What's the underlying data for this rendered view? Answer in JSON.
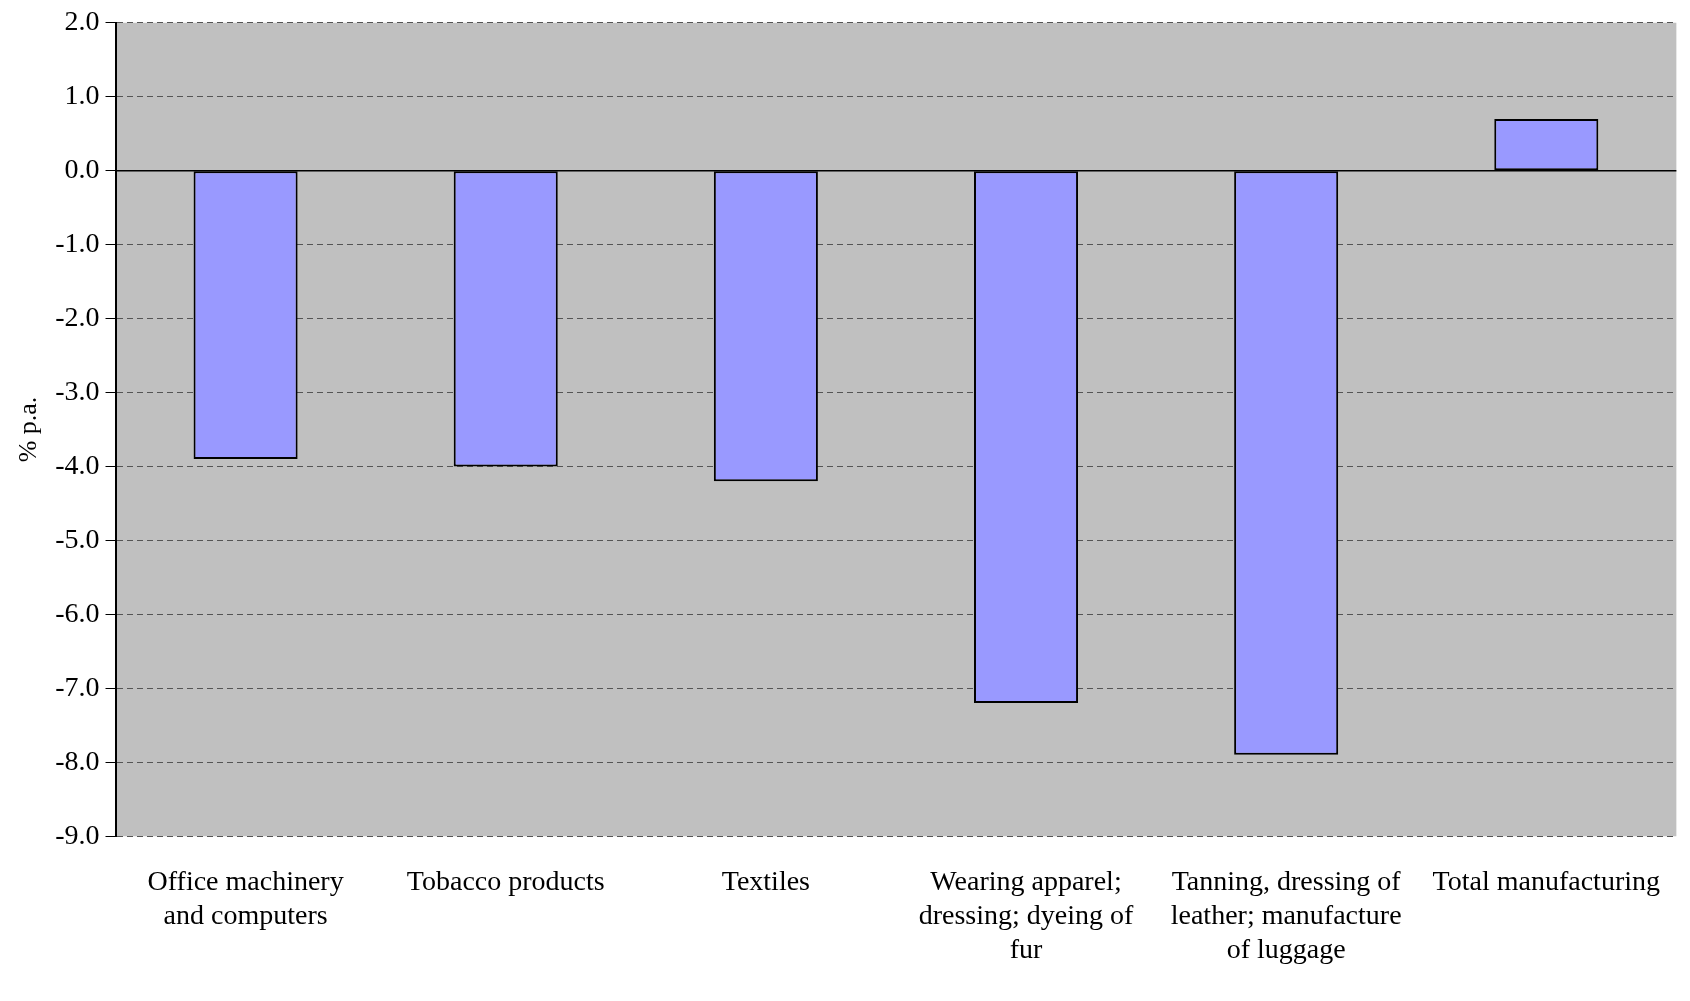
{
  "chart_data": {
    "type": "bar",
    "ylabel": "% p.a.",
    "categories": [
      "Office machinery and computers",
      "Tobacco products",
      "Textiles",
      "Wearing apparel; dressing; dyeing of fur",
      "Tanning, dressing of leather; manufacture of luggage",
      "Total manufacturing"
    ],
    "values": [
      -3.9,
      -4.0,
      -4.2,
      -7.2,
      -7.9,
      0.7
    ],
    "color": "#9999ff",
    "ylim": [
      -9,
      2
    ],
    "yticks": [
      {
        "value": 2,
        "label": "2.0"
      },
      {
        "value": 1,
        "label": "1.0"
      },
      {
        "value": 0,
        "label": "0.0"
      },
      {
        "value": -1,
        "label": "-1.0"
      },
      {
        "value": -2,
        "label": "-2.0"
      },
      {
        "value": -3,
        "label": "-3.0"
      },
      {
        "value": -4,
        "label": "-4.0"
      },
      {
        "value": -5,
        "label": "-5.0"
      },
      {
        "value": -6,
        "label": "-6.0"
      },
      {
        "value": -7,
        "label": "-7.0"
      },
      {
        "value": -8,
        "label": "-8.0"
      },
      {
        "value": -9,
        "label": "-9.0"
      }
    ],
    "grid": "y",
    "legend": false
  }
}
